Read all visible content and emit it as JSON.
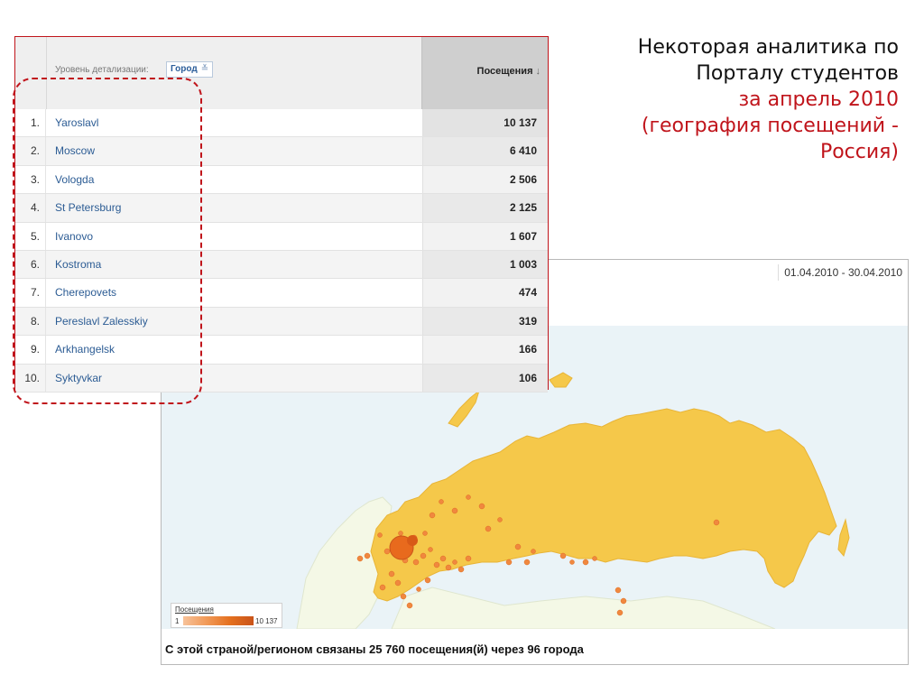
{
  "slide": {
    "title_line1": "Некоторая аналитика по",
    "title_line2": "Порталу студентов",
    "title_line3": "за апрель 2010",
    "title_line4": "(география посещений -",
    "title_line5": "Россия)",
    "accent_color": "#c0141b"
  },
  "map_panel": {
    "date_range": "01.04.2010 - 30.04.2010",
    "legend": {
      "title": "Посещения",
      "min": "1",
      "max": "10 137"
    },
    "caption": "С этой страной/регионом связаны 25 760 посещения(й) через 96 города",
    "colors": {
      "land": "#f5c84a",
      "water": "#eaf3f7",
      "dots": "#f0883f",
      "other_land": "#f4f8e6"
    }
  },
  "table": {
    "dimension_label": "Уровень детализации:",
    "dimension_value": "Город",
    "metric_header": "Посещения",
    "sort_icon": "sort-down-arrow-icon",
    "rows": [
      {
        "index": "1.",
        "city": "Yaroslavl",
        "visits": "10 137"
      },
      {
        "index": "2.",
        "city": "Moscow",
        "visits": "6 410"
      },
      {
        "index": "3.",
        "city": "Vologda",
        "visits": "2 506"
      },
      {
        "index": "4.",
        "city": "St Petersburg",
        "visits": "2 125"
      },
      {
        "index": "5.",
        "city": "Ivanovo",
        "visits": "1 607"
      },
      {
        "index": "6.",
        "city": "Kostroma",
        "visits": "1 003"
      },
      {
        "index": "7.",
        "city": "Cherepovets",
        "visits": "474"
      },
      {
        "index": "8.",
        "city": "Pereslavl Zalesskiy",
        "visits": "319"
      },
      {
        "index": "9.",
        "city": "Arkhangelsk",
        "visits": "166"
      },
      {
        "index": "10.",
        "city": "Syktyvkar",
        "visits": "106"
      }
    ]
  }
}
